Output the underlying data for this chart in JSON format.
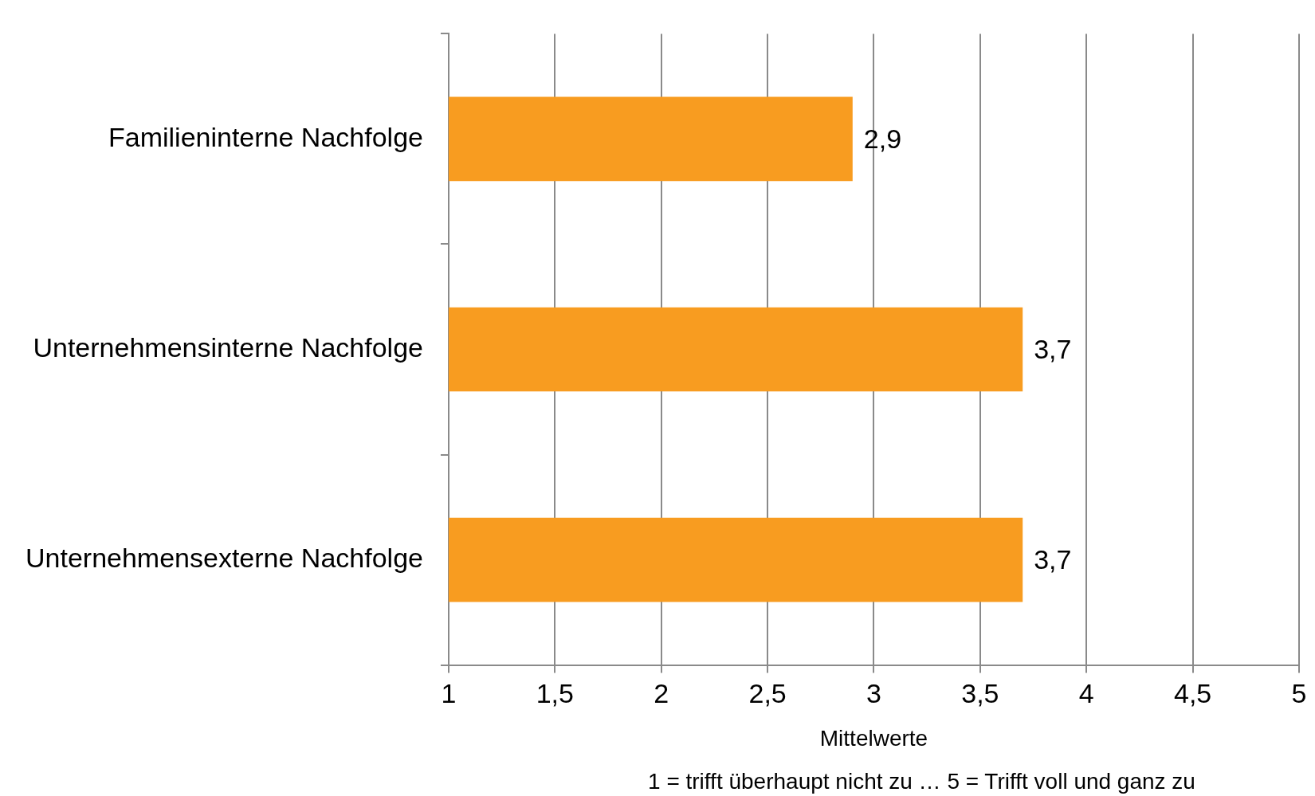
{
  "chart_data": {
    "type": "bar",
    "orientation": "horizontal",
    "categories": [
      "Familieninterne Nachfolge",
      "Unternehmensinterne Nachfolge",
      "Unternehmensexterne Nachfolge"
    ],
    "values": [
      2.9,
      3.7,
      3.7
    ],
    "color": "#f89c20",
    "value_labels": [
      "2,9",
      "3,7",
      "3,7"
    ],
    "xlim": [
      1,
      5
    ],
    "xticks": [
      1,
      {
        "value": 1.5,
        "label": "1,5"
      },
      2,
      {
        "value": 2.5,
        "label": "2,5"
      },
      3,
      {
        "value": 3.5,
        "label": "3,5"
      },
      4,
      {
        "value": 4.5,
        "label": "4,5"
      },
      5
    ],
    "xlabel": "Mittelwerte",
    "annotations": [
      "1 = trifft überhaupt nicht zu … 5 = Trifft voll und ganz zu"
    ],
    "grid": "x",
    "legend": false
  }
}
